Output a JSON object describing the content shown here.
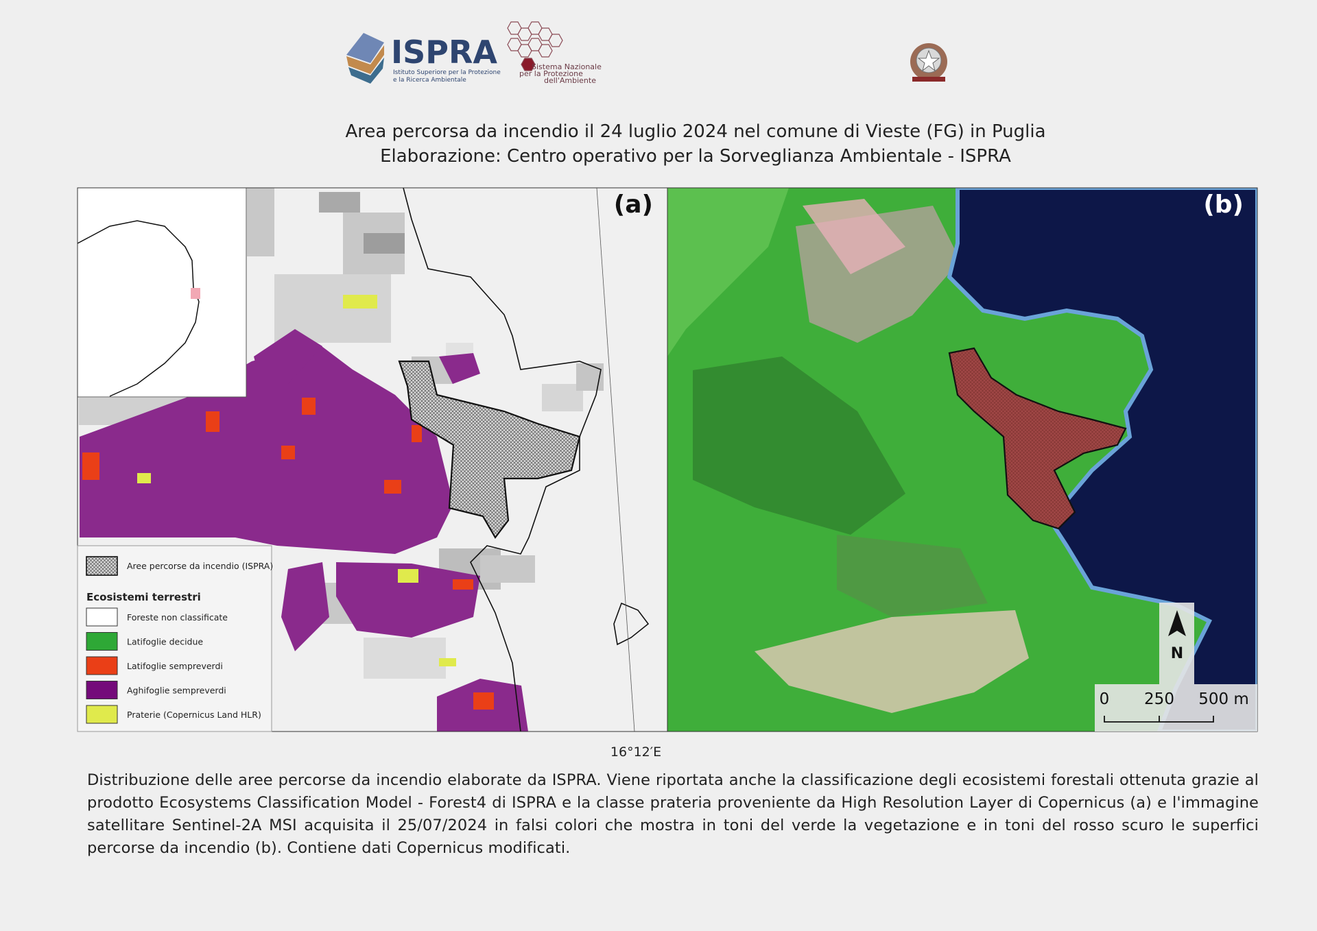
{
  "header": {
    "ispra_logo": {
      "title": "ISPRA",
      "subtitle_lines": [
        "Istituto Superiore per la Protezione",
        "e la Ricerca Ambientale"
      ]
    },
    "snpa_logo": {
      "lines": [
        "Sistema Nazionale",
        "per la Protezione",
        "dell'Ambiente"
      ]
    },
    "title_lines": [
      "Area percorsa da incendio il 24 luglio 2024 nel comune di Vieste (FG) in Puglia",
      "Elaborazione: Centro operativo per la Sorveglianza Ambientale - ISPRA"
    ]
  },
  "panels": [
    {
      "label": "(a)"
    },
    {
      "label": "(b)"
    }
  ],
  "legend": {
    "burned": "Aree percorse da incendio (ISPRA)",
    "heading": "Ecosistemi terrestri",
    "items": [
      {
        "label": "Foreste non classificate",
        "color": "#ffffff"
      },
      {
        "label": "Latifoglie decidue",
        "color": "#2ea836"
      },
      {
        "label": "Latifoglie sempreverdi",
        "color": "#ea3f17"
      },
      {
        "label": "Aghifoglie sempreverdi",
        "color": "#740a7a"
      },
      {
        "label": "Praterie (Copernicus Land HLR)",
        "color": "#e0ea4c"
      }
    ]
  },
  "north": "N",
  "scale_bar": {
    "labels": [
      "0",
      "250",
      "500 m"
    ]
  },
  "coordinate_label": "16°12′E",
  "caption": "Distribuzione delle aree percorse da incendio elaborate da ISPRA. Viene riportata anche la classificazione degli ecosistemi forestali ottenuta grazie al prodotto Ecosystems Classification Model - Forest4 di ISPRA e la classe prateria proveniente da High Resolution Layer di Copernicus (a) e l'immagine satellitare Sentinel-2A MSI acquisita il 25/07/2024 in falsi colori che mostra in toni del verde la vegetazione e in toni del rosso scuro le superfici percorse da incendio (b).  Contiene dati Copernicus modificati."
}
